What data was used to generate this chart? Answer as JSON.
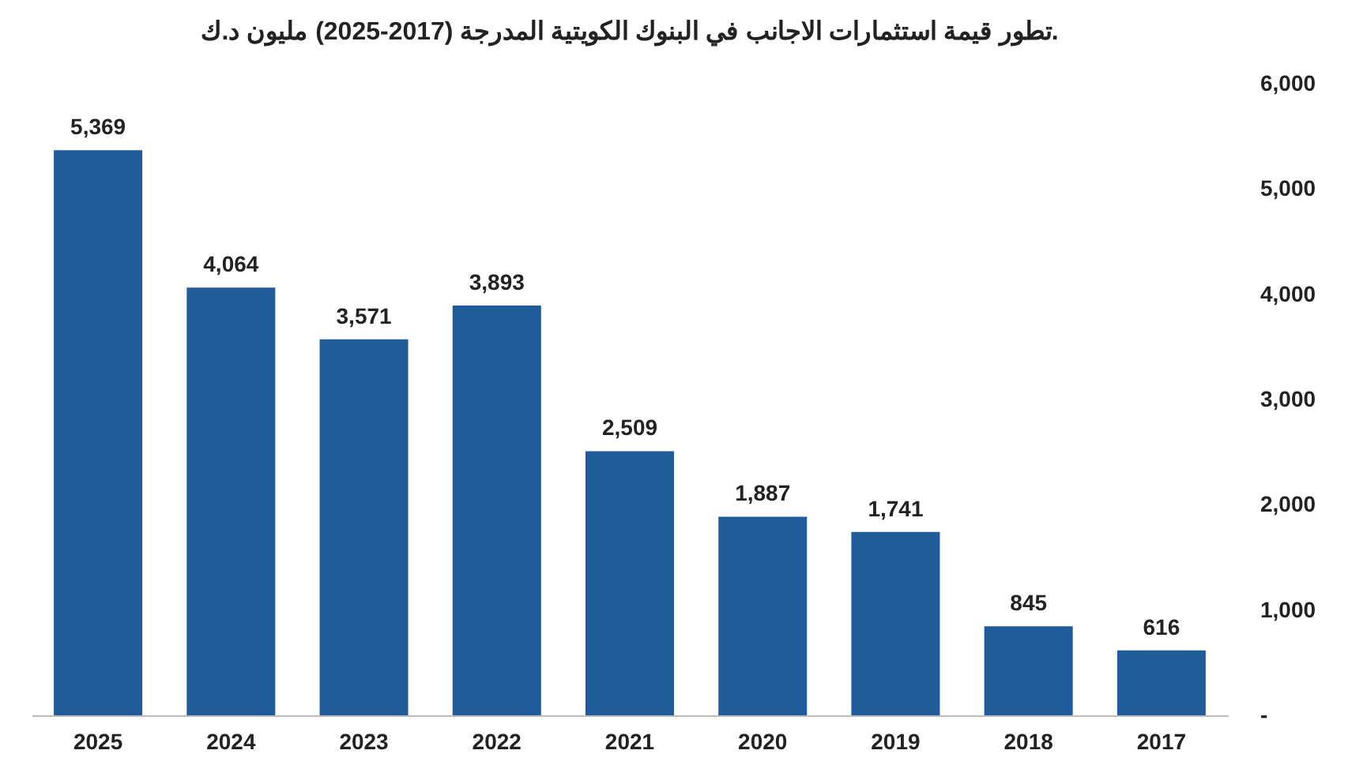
{
  "chart_data": {
    "type": "bar",
    "title": "تطور قيمة استثمارات الاجانب في البنوك الكويتية المدرجة (2017-2025) مليون د.ك.",
    "categories": [
      "2025",
      "2024",
      "2023",
      "2022",
      "2021",
      "2020",
      "2019",
      "2018",
      "2017"
    ],
    "values": [
      5369,
      4064,
      3571,
      3893,
      2509,
      1887,
      1741,
      845,
      616
    ],
    "color": "#1f5c99",
    "ylim": [
      0,
      6000
    ],
    "yticks": [
      {
        "value": 0,
        "label": "-"
      },
      {
        "value": 1000,
        "label": "1,000"
      },
      {
        "value": 2000,
        "label": "2,000"
      },
      {
        "value": 3000,
        "label": "3,000"
      },
      {
        "value": 4000,
        "label": "4,000"
      },
      {
        "value": 5000,
        "label": "5,000"
      },
      {
        "value": 6000,
        "label": "6,000"
      }
    ],
    "value_labels": [
      "5,369",
      "4,064",
      "3,571",
      "3,893",
      "2,509",
      "1,887",
      "1,741",
      "845",
      "616"
    ],
    "grid": false
  }
}
